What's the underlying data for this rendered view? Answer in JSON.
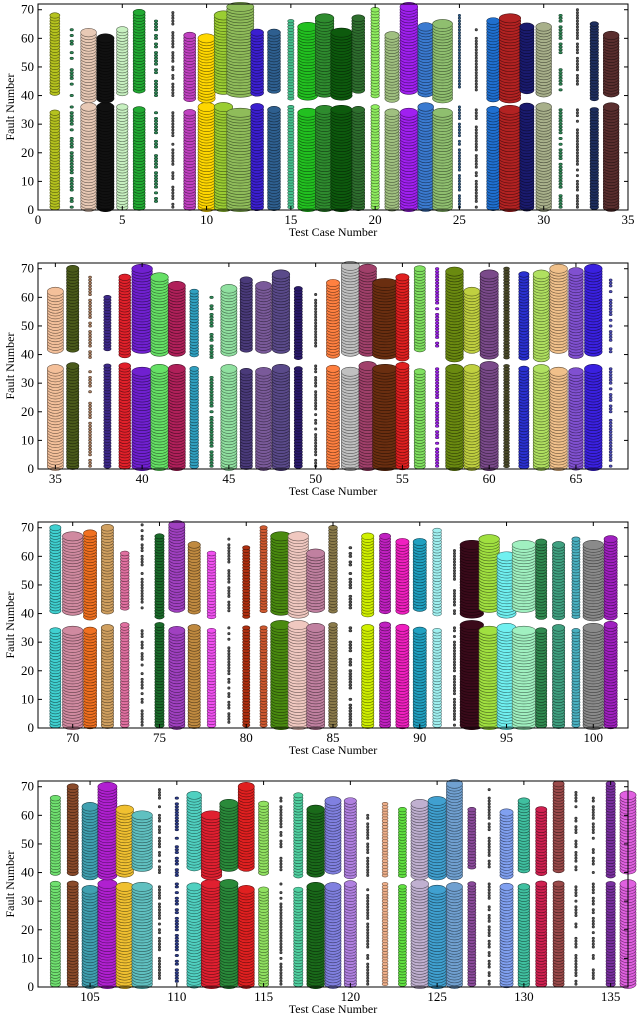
{
  "chart_data": [
    {
      "type": "scatter",
      "title": "",
      "xlabel": "Test Case Number",
      "ylabel": "Fault Number",
      "xlim": [
        0,
        35
      ],
      "ylim": [
        0,
        72
      ],
      "xticks": [
        0,
        5,
        10,
        15,
        20,
        25,
        30,
        35
      ],
      "yticks": [
        0,
        10,
        20,
        30,
        40,
        50,
        60,
        70
      ],
      "grid": false,
      "marker_size_encodes": "value",
      "test_cases": [
        {
          "x": 1,
          "s": 0.35,
          "c": "#b5c21f"
        },
        {
          "x": 2,
          "s": 0.12,
          "c": "#2e8b57"
        },
        {
          "x": 3,
          "s": 0.55,
          "c": "#e8c9b5"
        },
        {
          "x": 4,
          "s": 0.6,
          "c": "#111111"
        },
        {
          "x": 5,
          "s": 0.4,
          "c": "#c7f0c0"
        },
        {
          "x": 6,
          "s": 0.42,
          "c": "#22aa33"
        },
        {
          "x": 7,
          "s": 0.12,
          "c": "#2e8b57"
        },
        {
          "x": 8,
          "s": 0.05,
          "c": "#555555"
        },
        {
          "x": 9,
          "s": 0.42,
          "c": "#c040c0"
        },
        {
          "x": 10,
          "s": 0.6,
          "c": "#ffd700"
        },
        {
          "x": 11,
          "s": 0.65,
          "c": "#9acd32"
        },
        {
          "x": 12,
          "s": 0.95,
          "c": "#8fbc5a"
        },
        {
          "x": 13,
          "s": 0.45,
          "c": "#3b1fd0"
        },
        {
          "x": 14,
          "s": 0.45,
          "c": "#2e5f8f"
        },
        {
          "x": 15,
          "s": 0.22,
          "c": "#46c08c"
        },
        {
          "x": 16,
          "s": 0.7,
          "c": "#22c020"
        },
        {
          "x": 17,
          "s": 0.65,
          "c": "#2e8b2e"
        },
        {
          "x": 18,
          "s": 0.75,
          "c": "#0d5a0d"
        },
        {
          "x": 19,
          "s": 0.45,
          "c": "#2e6e2e"
        },
        {
          "x": 20,
          "s": 0.3,
          "c": "#90ee60"
        },
        {
          "x": 21,
          "s": 0.5,
          "c": "#a0c080"
        },
        {
          "x": 22,
          "s": 0.62,
          "c": "#a020f0"
        },
        {
          "x": 23,
          "s": 0.55,
          "c": "#3a7ad0"
        },
        {
          "x": 24,
          "s": 0.7,
          "c": "#8fbf6f"
        },
        {
          "x": 25,
          "s": 0.08,
          "c": "#2e5f8f"
        },
        {
          "x": 26,
          "s": 0.05,
          "c": "#555555"
        },
        {
          "x": 27,
          "s": 0.45,
          "c": "#1f6fd0"
        },
        {
          "x": 28,
          "s": 0.75,
          "c": "#b22222"
        },
        {
          "x": 29,
          "s": 0.5,
          "c": "#1a1a6e"
        },
        {
          "x": 30,
          "s": 0.55,
          "c": "#a8b08a"
        },
        {
          "x": 31,
          "s": 0.12,
          "c": "#2e8b57"
        },
        {
          "x": 32,
          "s": 0.05,
          "c": "#555555"
        },
        {
          "x": 33,
          "s": 0.3,
          "c": "#1e2e5e"
        },
        {
          "x": 34,
          "s": 0.55,
          "c": "#5a2e2e"
        }
      ]
    },
    {
      "type": "scatter",
      "title": "",
      "xlabel": "Test Case Number",
      "ylabel": "Fault Number",
      "xlim": [
        34,
        68
      ],
      "ylim": [
        0,
        72
      ],
      "xticks": [
        35,
        40,
        45,
        50,
        55,
        60,
        65
      ],
      "yticks": [
        0,
        10,
        20,
        30,
        40,
        50,
        60,
        70
      ],
      "grid": false,
      "marker_size_encodes": "value",
      "test_cases": [
        {
          "x": 35,
          "s": 0.55,
          "c": "#f4c09a"
        },
        {
          "x": 36,
          "s": 0.42,
          "c": "#4a5a1a"
        },
        {
          "x": 37,
          "s": 0.1,
          "c": "#b08060"
        },
        {
          "x": 38,
          "s": 0.25,
          "c": "#3e2a8a"
        },
        {
          "x": 39,
          "s": 0.4,
          "c": "#e0202a"
        },
        {
          "x": 40,
          "s": 0.7,
          "c": "#7020d0"
        },
        {
          "x": 41,
          "s": 0.6,
          "c": "#66e066"
        },
        {
          "x": 42,
          "s": 0.58,
          "c": "#b0205a"
        },
        {
          "x": 43,
          "s": 0.3,
          "c": "#30a0c0"
        },
        {
          "x": 44,
          "s": 0.12,
          "c": "#2e8b57"
        },
        {
          "x": 45,
          "s": 0.55,
          "c": "#90e0a0"
        },
        {
          "x": 46,
          "s": 0.42,
          "c": "#4a3a7a"
        },
        {
          "x": 47,
          "s": 0.55,
          "c": "#7a5a9a"
        },
        {
          "x": 48,
          "s": 0.6,
          "c": "#5a4a8a"
        },
        {
          "x": 49,
          "s": 0.28,
          "c": "#2a1a6a"
        },
        {
          "x": 50,
          "s": 0.05,
          "c": "#555555"
        },
        {
          "x": 51,
          "s": 0.45,
          "c": "#ff8040"
        },
        {
          "x": 52,
          "s": 0.62,
          "c": "#c0c0c0"
        },
        {
          "x": 53,
          "s": 0.6,
          "c": "#a0406a"
        },
        {
          "x": 54,
          "s": 0.85,
          "c": "#6a2e10"
        },
        {
          "x": 55,
          "s": 0.45,
          "c": "#e02020"
        },
        {
          "x": 56,
          "s": 0.38,
          "c": "#80e060"
        },
        {
          "x": 57,
          "s": 0.12,
          "c": "#a020f0"
        },
        {
          "x": 58,
          "s": 0.6,
          "c": "#6a8a10"
        },
        {
          "x": 59,
          "s": 0.55,
          "c": "#c0d040"
        },
        {
          "x": 60,
          "s": 0.62,
          "c": "#7a4a8a"
        },
        {
          "x": 61,
          "s": 0.2,
          "c": "#4a4a2a"
        },
        {
          "x": 62,
          "s": 0.35,
          "c": "#2a30d0"
        },
        {
          "x": 63,
          "s": 0.55,
          "c": "#b0e060"
        },
        {
          "x": 64,
          "s": 0.6,
          "c": "#f0c08a"
        },
        {
          "x": 65,
          "s": 0.5,
          "c": "#8050d0"
        },
        {
          "x": 66,
          "s": 0.6,
          "c": "#3a20e0"
        },
        {
          "x": 67,
          "s": 0.1,
          "c": "#5050c0"
        }
      ]
    },
    {
      "type": "scatter",
      "title": "",
      "xlabel": "Test Case Number",
      "ylabel": "Fault Number",
      "xlim": [
        68,
        102
      ],
      "ylim": [
        0,
        72
      ],
      "xticks": [
        70,
        75,
        80,
        85,
        90,
        95,
        100
      ],
      "yticks": [
        0,
        10,
        20,
        30,
        40,
        50,
        60,
        70
      ],
      "grid": false,
      "marker_size_encodes": "value",
      "test_cases": [
        {
          "x": 69,
          "s": 0.38,
          "c": "#40d0d0"
        },
        {
          "x": 70,
          "s": 0.7,
          "c": "#d08aa0"
        },
        {
          "x": 71,
          "s": 0.45,
          "c": "#f07020"
        },
        {
          "x": 72,
          "s": 0.42,
          "c": "#d0a060"
        },
        {
          "x": 73,
          "s": 0.3,
          "c": "#e070a0"
        },
        {
          "x": 74,
          "s": 0.05,
          "c": "#555555"
        },
        {
          "x": 75,
          "s": 0.32,
          "c": "#1a6a2a"
        },
        {
          "x": 76,
          "s": 0.55,
          "c": "#a040c0"
        },
        {
          "x": 77,
          "s": 0.42,
          "c": "#c08a40"
        },
        {
          "x": 78,
          "s": 0.3,
          "c": "#f050f0"
        },
        {
          "x": 79,
          "s": 0.06,
          "c": "#555555"
        },
        {
          "x": 80,
          "s": 0.25,
          "c": "#b03010"
        },
        {
          "x": 81,
          "s": 0.25,
          "c": "#d05a30"
        },
        {
          "x": 82,
          "s": 0.7,
          "c": "#4a8a10"
        },
        {
          "x": 83,
          "s": 0.7,
          "c": "#f0c8c0"
        },
        {
          "x": 84,
          "s": 0.62,
          "c": "#c080a0"
        },
        {
          "x": 85,
          "s": 0.3,
          "c": "#8a7a4a"
        },
        {
          "x": 86,
          "s": 0.1,
          "c": "#555555"
        },
        {
          "x": 87,
          "s": 0.42,
          "c": "#d0f000"
        },
        {
          "x": 88,
          "s": 0.38,
          "c": "#c020c0"
        },
        {
          "x": 89,
          "s": 0.45,
          "c": "#f020c0"
        },
        {
          "x": 90,
          "s": 0.45,
          "c": "#20a0c0"
        },
        {
          "x": 91,
          "s": 0.3,
          "c": "#a0f0f0"
        },
        {
          "x": 92,
          "s": 0.08,
          "c": "#555555"
        },
        {
          "x": 93,
          "s": 0.8,
          "c": "#3a0a1a"
        },
        {
          "x": 94,
          "s": 0.7,
          "c": "#a0e040"
        },
        {
          "x": 95,
          "s": 0.65,
          "c": "#70f0f0"
        },
        {
          "x": 96,
          "s": 0.8,
          "c": "#a0f0c0"
        },
        {
          "x": 97,
          "s": 0.38,
          "c": "#308a50"
        },
        {
          "x": 98,
          "s": 0.42,
          "c": "#40a080"
        },
        {
          "x": 99,
          "s": 0.28,
          "c": "#4ab0c0"
        },
        {
          "x": 100,
          "s": 0.7,
          "c": "#8a8a8a"
        },
        {
          "x": 101,
          "s": 0.45,
          "c": "#a020c0"
        }
      ]
    },
    {
      "type": "scatter",
      "title": "",
      "xlabel": "Test Case Number",
      "ylabel": "Fault Number",
      "xlim": [
        102,
        136
      ],
      "ylim": [
        0,
        72
      ],
      "xticks": [
        105,
        110,
        115,
        120,
        125,
        130,
        135
      ],
      "yticks": [
        0,
        10,
        20,
        30,
        40,
        50,
        60,
        70
      ],
      "grid": false,
      "marker_size_encodes": "value",
      "test_cases": [
        {
          "x": 103,
          "s": 0.35,
          "c": "#70e070"
        },
        {
          "x": 104,
          "s": 0.38,
          "c": "#8a4a2a"
        },
        {
          "x": 105,
          "s": 0.55,
          "c": "#40a0b0"
        },
        {
          "x": 106,
          "s": 0.65,
          "c": "#b020d0"
        },
        {
          "x": 107,
          "s": 0.6,
          "c": "#f0c030"
        },
        {
          "x": 108,
          "s": 0.7,
          "c": "#60c0c0"
        },
        {
          "x": 109,
          "s": 0.06,
          "c": "#555555"
        },
        {
          "x": 110,
          "s": 0.12,
          "c": "#2a3a8a"
        },
        {
          "x": 111,
          "s": 0.5,
          "c": "#50d0c0"
        },
        {
          "x": 112,
          "s": 0.7,
          "c": "#e02030"
        },
        {
          "x": 113,
          "s": 0.62,
          "c": "#2a8a3a"
        },
        {
          "x": 114,
          "s": 0.55,
          "c": "#e02020"
        },
        {
          "x": 115,
          "s": 0.35,
          "c": "#90e060"
        },
        {
          "x": 116,
          "s": 0.05,
          "c": "#555555"
        },
        {
          "x": 117,
          "s": 0.32,
          "c": "#50d0a0"
        },
        {
          "x": 118,
          "s": 0.6,
          "c": "#1a6a1a"
        },
        {
          "x": 119,
          "s": 0.55,
          "c": "#8080e0"
        },
        {
          "x": 120,
          "s": 0.42,
          "c": "#b080e0"
        },
        {
          "x": 121,
          "s": 0.08,
          "c": "#555555"
        },
        {
          "x": 122,
          "s": 0.2,
          "c": "#f0b08a"
        },
        {
          "x": 123,
          "s": 0.28,
          "c": "#60e040"
        },
        {
          "x": 124,
          "s": 0.6,
          "c": "#c0b0d0"
        },
        {
          "x": 125,
          "s": 0.62,
          "c": "#40a0d0"
        },
        {
          "x": 126,
          "s": 0.55,
          "c": "#70a0d0"
        },
        {
          "x": 127,
          "s": 0.28,
          "c": "#8a4a9a"
        },
        {
          "x": 128,
          "s": 0.05,
          "c": "#555555"
        },
        {
          "x": 129,
          "s": 0.45,
          "c": "#80a0f0"
        },
        {
          "x": 130,
          "s": 0.4,
          "c": "#40c0a0"
        },
        {
          "x": 131,
          "s": 0.38,
          "c": "#d02050"
        },
        {
          "x": 132,
          "s": 0.38,
          "c": "#9a4a4a"
        },
        {
          "x": 133,
          "s": 0.08,
          "c": "#555555"
        },
        {
          "x": 134,
          "s": 0.06,
          "c": "#555555"
        },
        {
          "x": 135,
          "s": 0.32,
          "c": "#7a30a0"
        },
        {
          "x": 136,
          "s": 0.55,
          "c": "#e060e0"
        }
      ]
    }
  ]
}
